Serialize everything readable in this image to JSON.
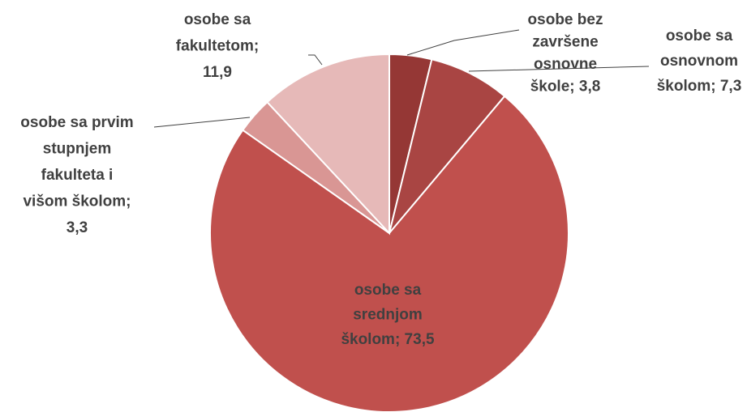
{
  "chart_data": {
    "type": "pie",
    "values": [
      3.8,
      7.3,
      73.5,
      3.3,
      11.9
    ],
    "value_labels": [
      [
        "osobe bez",
        "završene",
        "osnovne",
        "škole; 3,8"
      ],
      [
        "osobe sa",
        "osnovnom",
        "školom; 7,3"
      ],
      [
        "osobe sa",
        "srednjom",
        "školom; 73,5"
      ],
      [
        "osobe sa prvim",
        "stupnjem",
        "fakulteta i",
        "višom školom;",
        "3,3"
      ],
      [
        "osobe sa",
        "fakultetom;",
        "11,9"
      ]
    ],
    "colors": [
      "#953735",
      "#a94543",
      "#c0504d",
      "#d99694",
      "#e6b9b8"
    ]
  }
}
